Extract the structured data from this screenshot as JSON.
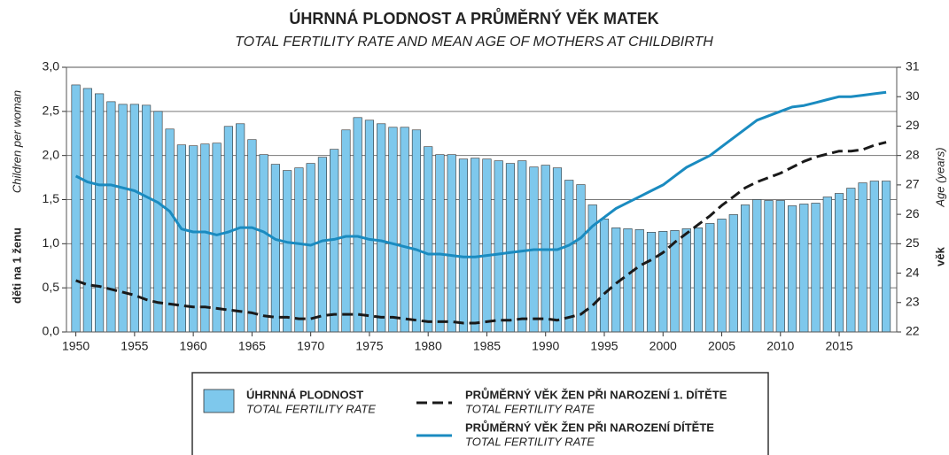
{
  "chart_data": {
    "type": "combo",
    "title": "ÚHRNNÁ PLODNOST A PRŮMĚRNÝ VĚK MATEK",
    "subtitle": "TOTAL FERTILITY RATE AND MEAN AGE OF MOTHERS AT CHILDBIRTH",
    "y_label": "děti na 1 ženu",
    "y_label_en": "Children per woman",
    "y2_label": "věk",
    "y2_label_en": "Age (years)",
    "x": [
      1950,
      1951,
      1952,
      1953,
      1954,
      1955,
      1956,
      1957,
      1958,
      1959,
      1960,
      1961,
      1962,
      1963,
      1964,
      1965,
      1966,
      1967,
      1968,
      1969,
      1970,
      1971,
      1972,
      1973,
      1974,
      1975,
      1976,
      1977,
      1978,
      1979,
      1980,
      1981,
      1982,
      1983,
      1984,
      1985,
      1986,
      1987,
      1988,
      1989,
      1990,
      1991,
      1992,
      1993,
      1994,
      1995,
      1996,
      1997,
      1998,
      1999,
      2000,
      2001,
      2002,
      2003,
      2004,
      2005,
      2006,
      2007,
      2008,
      2009,
      2010,
      2011,
      2012,
      2013,
      2014,
      2015,
      2016,
      2017,
      2018,
      2019
    ],
    "xlim": [
      1949.2,
      2019.9
    ],
    "xticks": [
      1950,
      1955,
      1960,
      1965,
      1970,
      1975,
      1980,
      1985,
      1990,
      1995,
      2000,
      2005,
      2010,
      2015
    ],
    "ylim": [
      0,
      3
    ],
    "yticks": [
      {
        "value": 0,
        "label": "0,0"
      },
      {
        "value": 0.5,
        "label": "0,5"
      },
      {
        "value": 1,
        "label": "1,0"
      },
      {
        "value": 1.5,
        "label": "1,5"
      },
      {
        "value": 2,
        "label": "2,0"
      },
      {
        "value": 2.5,
        "label": "2,5"
      },
      {
        "value": 3,
        "label": "3,0"
      }
    ],
    "y2lim": [
      22,
      31
    ],
    "y2ticks": [
      22,
      23,
      24,
      25,
      26,
      27,
      28,
      29,
      30,
      31
    ],
    "grid": true,
    "series": [
      {
        "name": "ÚHRNNÁ PLODNOST",
        "name_en": "TOTAL FERTILITY RATE",
        "type": "bar",
        "color": "#7ec8ec",
        "values": [
          2.8,
          2.76,
          2.7,
          2.61,
          2.58,
          2.58,
          2.57,
          2.5,
          2.3,
          2.12,
          2.11,
          2.13,
          2.14,
          2.33,
          2.36,
          2.18,
          2.01,
          1.9,
          1.83,
          1.86,
          1.91,
          1.98,
          2.07,
          2.29,
          2.43,
          2.4,
          2.36,
          2.32,
          2.32,
          2.29,
          2.1,
          2.01,
          2.01,
          1.96,
          1.97,
          1.96,
          1.94,
          1.91,
          1.94,
          1.87,
          1.89,
          1.86,
          1.72,
          1.67,
          1.44,
          1.28,
          1.18,
          1.17,
          1.16,
          1.13,
          1.14,
          1.15,
          1.17,
          1.18,
          1.23,
          1.28,
          1.33,
          1.44,
          1.5,
          1.49,
          1.49,
          1.43,
          1.45,
          1.46,
          1.53,
          1.57,
          1.63,
          1.69,
          1.71,
          1.71
        ]
      },
      {
        "name": "PRŮMĚRNÝ VĚK ŽEN PŘI NAROZENÍ 1. DÍTĚTE",
        "name_en": "TOTAL FERTILITY RATE",
        "type": "line",
        "dashed": true,
        "axis": "y2",
        "color": "#1a1a1a",
        "values": [
          23.75,
          23.6,
          23.55,
          23.45,
          23.35,
          23.25,
          23.1,
          23.0,
          22.95,
          22.9,
          22.85,
          22.85,
          22.8,
          22.75,
          22.7,
          22.65,
          22.55,
          22.5,
          22.5,
          22.45,
          22.45,
          22.55,
          22.6,
          22.6,
          22.6,
          22.55,
          22.5,
          22.5,
          22.45,
          22.4,
          22.35,
          22.35,
          22.35,
          22.3,
          22.3,
          22.35,
          22.4,
          22.4,
          22.45,
          22.45,
          22.45,
          22.4,
          22.5,
          22.6,
          22.9,
          23.3,
          23.65,
          23.95,
          24.25,
          24.45,
          24.7,
          25.05,
          25.35,
          25.65,
          25.95,
          26.3,
          26.6,
          26.9,
          27.1,
          27.25,
          27.4,
          27.6,
          27.8,
          27.95,
          28.05,
          28.15,
          28.15,
          28.2,
          28.35,
          28.45
        ]
      },
      {
        "name": "PRŮMĚRNÝ VĚK ŽEN PŘI NAROZENÍ DÍTĚTE",
        "name_en": "TOTAL FERTILITY RATE",
        "type": "line",
        "dashed": false,
        "axis": "y2",
        "color": "#1a8bc0",
        "values": [
          27.3,
          27.1,
          27.0,
          27.0,
          26.9,
          26.8,
          26.6,
          26.4,
          26.1,
          25.5,
          25.4,
          25.4,
          25.3,
          25.4,
          25.55,
          25.55,
          25.4,
          25.15,
          25.05,
          25.0,
          24.95,
          25.1,
          25.15,
          25.25,
          25.25,
          25.15,
          25.1,
          25.0,
          24.9,
          24.8,
          24.65,
          24.65,
          24.6,
          24.55,
          24.55,
          24.6,
          24.65,
          24.7,
          24.75,
          24.8,
          24.8,
          24.8,
          24.95,
          25.2,
          25.6,
          25.9,
          26.2,
          26.4,
          26.6,
          26.8,
          27.0,
          27.3,
          27.6,
          27.8,
          28.0,
          28.3,
          28.6,
          28.9,
          29.2,
          29.35,
          29.5,
          29.65,
          29.7,
          29.8,
          29.9,
          30.0,
          30.0,
          30.05,
          30.1,
          30.15
        ]
      }
    ]
  }
}
